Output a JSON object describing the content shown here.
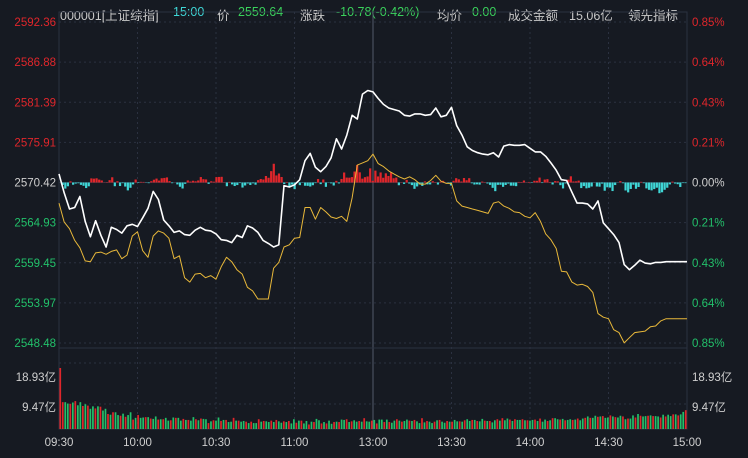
{
  "header": {
    "code": "000001[上证综指]",
    "time": "15:00",
    "price_label": "价",
    "price": "2559.64",
    "change_label": "涨跌",
    "change": "-10.78(-0.42%)",
    "avg_label": "均价",
    "avg": "0.00",
    "turnover_label": "成交金额",
    "turnover": "15.06亿",
    "leading_label": "领先指标"
  },
  "colors": {
    "background": "#161a22",
    "grid": "#2b3140",
    "price_line": "#ffffff",
    "leading_line": "#e8b83a",
    "up": "#e0262b",
    "down": "#22c06a",
    "zero_axis_text": "#cfcfcf",
    "diff_up": "#e0262b",
    "diff_down": "#3fd6d6"
  },
  "chart_data": {
    "type": "line",
    "title": "000001[上证综指]",
    "y_left_ticks": [
      "2592.36",
      "2586.88",
      "2581.39",
      "2575.91",
      "2570.42",
      "2564.93",
      "2559.45",
      "2553.97",
      "2548.48"
    ],
    "y_right_ticks": [
      "0.85%",
      "0.64%",
      "0.43%",
      "0.21%",
      "0.00%",
      "0.21%",
      "0.43%",
      "0.64%",
      "0.85%"
    ],
    "ylim": [
      2548.48,
      2592.36
    ],
    "prev_close": 2570.42,
    "volume_ticks": [
      "18.93亿",
      "9.47亿"
    ],
    "volume_max": 18.93,
    "x_ticks": [
      "09:30",
      "10:00",
      "10:30",
      "11:00",
      "13:00",
      "13:30",
      "14:00",
      "14:30",
      "15:00"
    ],
    "x_tick_minutes": [
      0,
      30,
      60,
      90,
      120,
      150,
      180,
      210,
      240
    ],
    "series": [
      {
        "kind": "price",
        "minutes": [
          0,
          2,
          4,
          6,
          8,
          10,
          12,
          14,
          16,
          18,
          20,
          22,
          24,
          26,
          28,
          30,
          32,
          34,
          36,
          38,
          40,
          42,
          44,
          46,
          48,
          50,
          52,
          54,
          56,
          58,
          60,
          62,
          64,
          66,
          68,
          70,
          72,
          74,
          76,
          78,
          80,
          82,
          84,
          86,
          88,
          90,
          92,
          94,
          96,
          98,
          100,
          102,
          104,
          106,
          108,
          110,
          112,
          114,
          116,
          118,
          120,
          122,
          124,
          126,
          128,
          130,
          132,
          134,
          136,
          138,
          140,
          142,
          144,
          146,
          148,
          150,
          152,
          154,
          156,
          158,
          160,
          162,
          164,
          166,
          168,
          170,
          172,
          174,
          176,
          178,
          180,
          182,
          184,
          186,
          188,
          190,
          192,
          194,
          196,
          198,
          200,
          202,
          204,
          206,
          208,
          210,
          212,
          214,
          216,
          218,
          220,
          222,
          224,
          226,
          228,
          230,
          232,
          234,
          236,
          238,
          240
        ],
        "values": [
          2571.6,
          2569.0,
          2566.8,
          2567.0,
          2568.5,
          2565.1,
          2563.0,
          2565.2,
          2563.2,
          2561.6,
          2564.3,
          2564.0,
          2563.5,
          2564.5,
          2564.7,
          2564.4,
          2565.6,
          2566.9,
          2569.2,
          2568.1,
          2565.3,
          2564.5,
          2563.6,
          2563.8,
          2563.3,
          2563.2,
          2563.9,
          2564.3,
          2563.9,
          2563.8,
          2563.4,
          2562.6,
          2562.5,
          2562.2,
          2563.2,
          2562.9,
          2564.5,
          2564.2,
          2563.6,
          2562.5,
          2562.1,
          2561.6,
          2561.9,
          2570.0,
          2569.8,
          2570.1,
          2570.8,
          2573.4,
          2574.4,
          2572.5,
          2571.9,
          2572.6,
          2573.8,
          2576.4,
          2575.0,
          2576.9,
          2579.6,
          2579.1,
          2582.5,
          2583.0,
          2582.8,
          2581.9,
          2581.1,
          2580.6,
          2580.4,
          2580.2,
          2579.6,
          2579.5,
          2579.8,
          2579.8,
          2579.6,
          2579.7,
          2580.6,
          2579.4,
          2579.6,
          2580.7,
          2578.2,
          2576.9,
          2575.3,
          2574.8,
          2574.5,
          2574.3,
          2574.2,
          2574.5,
          2573.9,
          2575.4,
          2575.6,
          2575.5,
          2575.5,
          2575.6,
          2575.1,
          2574.6,
          2574.6,
          2574.0,
          2573.1,
          2572.1,
          2570.8,
          2570.7,
          2569.1,
          2567.6,
          2567.6,
          2567.5,
          2566.8,
          2567.9,
          2564.9,
          2564.1,
          2563.3,
          2562.2,
          2559.2,
          2558.5,
          2559.1,
          2559.8,
          2559.4,
          2559.3,
          2559.5,
          2559.5,
          2559.6,
          2559.6,
          2559.6,
          2559.6,
          2559.6
        ]
      },
      {
        "kind": "leading",
        "minutes": [
          0,
          2,
          4,
          6,
          8,
          10,
          12,
          14,
          16,
          18,
          20,
          22,
          24,
          26,
          28,
          30,
          32,
          34,
          36,
          38,
          40,
          42,
          44,
          46,
          48,
          50,
          52,
          54,
          56,
          58,
          60,
          62,
          64,
          66,
          68,
          70,
          72,
          74,
          76,
          78,
          80,
          82,
          84,
          86,
          88,
          90,
          92,
          94,
          96,
          98,
          100,
          102,
          104,
          106,
          108,
          110,
          112,
          114,
          116,
          118,
          120,
          122,
          124,
          126,
          128,
          130,
          132,
          134,
          136,
          138,
          140,
          142,
          144,
          146,
          148,
          150,
          152,
          154,
          156,
          158,
          160,
          162,
          164,
          166,
          168,
          170,
          172,
          174,
          176,
          178,
          180,
          182,
          184,
          186,
          188,
          190,
          192,
          194,
          196,
          198,
          200,
          202,
          204,
          206,
          208,
          210,
          212,
          214,
          216,
          218,
          220,
          222,
          224,
          226,
          228,
          230,
          232,
          234,
          236,
          238,
          240
        ],
        "values": [
          2567.6,
          2565.0,
          2564.1,
          2562.5,
          2561.5,
          2559.7,
          2559.6,
          2560.8,
          2560.9,
          2560.6,
          2561.0,
          2561.2,
          2560.0,
          2560.5,
          2563.1,
          2563.7,
          2561.1,
          2560.2,
          2563.1,
          2563.8,
          2563.5,
          2562.8,
          2560.0,
          2560.4,
          2557.4,
          2556.8,
          2557.9,
          2558.0,
          2557.4,
          2557.7,
          2557.2,
          2558.9,
          2560.2,
          2559.6,
          2558.5,
          2557.9,
          2556.1,
          2555.6,
          2554.5,
          2554.5,
          2554.5,
          2558.7,
          2559.5,
          2561.6,
          2561.9,
          2562.8,
          2562.9,
          2567.0,
          2567.0,
          2565.4,
          2567.0,
          2566.4,
          2565.7,
          2565.5,
          2565.8,
          2565.1,
          2568.3,
          2572.8,
          2573.1,
          2573.4,
          2574.3,
          2573.0,
          2572.6,
          2572.0,
          2571.6,
          2571.2,
          2570.9,
          2571.2,
          2570.8,
          2570.2,
          2570.2,
          2570.7,
          2571.4,
          2570.6,
          2570.3,
          2570.3,
          2567.9,
          2567.2,
          2567.0,
          2566.8,
          2566.6,
          2566.4,
          2566.2,
          2567.6,
          2567.8,
          2567.2,
          2566.9,
          2566.4,
          2566.3,
          2565.8,
          2565.6,
          2566.3,
          2565.1,
          2563.4,
          2562.6,
          2561.4,
          2558.3,
          2558.2,
          2556.8,
          2556.4,
          2556.5,
          2556.2,
          2555.4,
          2552.5,
          2552.0,
          2551.8,
          2550.3,
          2549.9,
          2548.5,
          2549.2,
          2549.9,
          2550.0,
          2550.1,
          2550.7,
          2550.8,
          2551.5,
          2551.8,
          2551.8,
          2551.8,
          2551.8,
          2551.8
        ]
      }
    ],
    "diff_bars": [
      0.0,
      -1.37,
      -3.39,
      -2.1,
      0.66,
      -1.24,
      -0.61,
      -0.41,
      -1.32,
      -1.85,
      -3.09,
      -2.11,
      2.29,
      2.14,
      2.34,
      1.61,
      1.13,
      0.1,
      0.22,
      1.29,
      2.91,
      -2.06,
      0.72,
      -1.96,
      -0.38,
      -2.26,
      -4.38,
      -2.94,
      -1.05,
      1.65,
      -0.28,
      0.36,
      0.32,
      -0.15,
      -0.37,
      0.71,
      1.55,
      2.18,
      1.07,
      2.37,
      2.54,
      2.83,
      0.79,
      -0.39,
      0.05,
      -1.06,
      -2.36,
      -3.34,
      -0.73,
      1.16,
      0.53,
      0.97,
      0.67,
      1.13,
      3.03,
      1.85,
      1.71,
      -0.76,
      0.69,
      0.45,
      3.0,
      3.09,
      3.16,
      0.14,
      -2.06,
      0.36,
      -1.05,
      -1.96,
      -1.42,
      -0.32,
      -2.8,
      -1.65,
      -0.54,
      -1.38,
      -0.46,
      -1.23,
      1.31,
      1.95,
      1.67,
      3.61,
      2.63,
      6.31,
      10.41,
      3.92,
      5.0,
      3.05,
      -0.82,
      0.32,
      -2.23,
      -1.13,
      -3.71,
      -0.04,
      -1.46,
      -0.17,
      -1.8,
      -1.86,
      -2.22,
      -1.51,
      -0.35,
      1.92,
      -0.91,
      1.66,
      -2.41,
      -0.12,
      -0.47,
      -1.67,
      0.92,
      -0.51,
      1.96,
      5.55,
      2.73,
      2.68,
      3.02,
      6.09,
      9.74,
      5.65,
      2.14,
      2.96,
      3.36,
      7.85,
      0.95,
      6.6,
      3.37,
      5.58,
      2.63,
      5.1,
      3.62,
      5.69,
      2.35,
      2.74,
      -1.52,
      0.18,
      -0.78,
      1.47,
      -0.57,
      -1.45,
      -3.51,
      -2.19,
      -1.06,
      -1.91,
      0.62,
      -1.04,
      -1.07,
      0.74,
      0.24,
      -1.13,
      0.45,
      0.94,
      0.05,
      -0.46,
      -1.65,
      0.97,
      2.41,
      1.77,
      0.55,
      2.49,
      1.24,
      2.39,
      -0.44,
      -1.13,
      -1.02,
      -1.18,
      0.5,
      0.21,
      -0.55,
      -1.31,
      -2.96,
      -4.81,
      -1.3,
      -1.25,
      -2.41,
      -1.37,
      -0.6,
      -1.76,
      -1.79,
      -2.03,
      0.32,
      0.28,
      1.1,
      0.11,
      0.3,
      -0.23,
      0.95,
      0.94,
      2.74,
      -0.3,
      1.64,
      1.87,
      0.29,
      -1.1,
      0.79,
      0.64,
      -1.48,
      -3.3,
      -0.52,
      1.6,
      3.44,
      0.59,
      0.63,
      1.03,
      -3.1,
      -2.0,
      -3.24,
      -2.92,
      -2.22,
      -0.07,
      -2.22,
      -2.33,
      -0.61,
      -4.57,
      -2.65,
      -2.82,
      -4.75,
      -1.41,
      -0.08,
      0.77,
      -0.4,
      -4.43,
      -5.49,
      -3.6,
      -1.22,
      -3.49,
      -2.5,
      0.37,
      -0.39,
      -3.27,
      -4.07,
      -4.38,
      -3.68,
      -2.88,
      -5.94,
      -5.44,
      -4.04,
      -2.91,
      -1.06,
      0.48,
      -0.57,
      -0.94,
      -2.49,
      -0.32,
      -0.35
    ],
    "volumes": [
      17.5,
      7.7,
      7.7,
      7.3,
      7.2,
      7.6,
      8.0,
      6.8,
      7.7,
      6.6,
      7.1,
      6.7,
      5.8,
      6.5,
      5.9,
      6.5,
      6.4,
      5.3,
      5.8,
      4.3,
      4.1,
      4.8,
      4.8,
      4.0,
      3.8,
      4.4,
      3.5,
      4.0,
      4.8,
      2.7,
      3.2,
      4.0,
      3.2,
      3.3,
      3.4,
      3.4,
      3.0,
      2.9,
      3.6,
      2.7,
      2.8,
      2.8,
      3.2,
      2.4,
      2.5,
      3.3,
      3.2,
      3.2,
      2.4,
      2.9,
      2.6,
      2.6,
      2.4,
      3.4,
      2.8,
      2.5,
      3.0,
      2.9,
      2.8,
      1.7,
      2.2,
      2.5,
      2.4,
      3.3,
      2.3,
      2.6,
      2.6,
      2.0,
      2.1,
      3.2,
      2.4,
      2.4,
      2.1,
      2.3,
      2.1,
      1.7,
      2.1,
      1.7,
      1.7,
      2.8,
      2.1,
      2.3,
      2.2,
      2.0,
      2.4,
      2.0,
      2.6,
      2.2,
      1.8,
      2.2,
      2.0,
      2.3,
      1.6,
      2.8,
      1.8,
      2.4,
      2.4,
      1.6,
      2.3,
      1.3,
      2.1,
      2.0,
      2.9,
      2.5,
      1.6,
      2.0,
      1.6,
      2.4,
      1.5,
      2.0,
      2.1,
      2.0,
      2.7,
      2.6,
      2.8,
      2.0,
      2.2,
      2.5,
      2.1,
      2.3,
      2.1,
      3.1,
      2.2,
      2.1,
      2.4,
      2.6,
      1.6,
      2.7,
      2.7,
      2.0,
      2.7,
      2.0,
      1.8,
      2.4,
      2.8,
      2.4,
      2.1,
      2.3,
      2.7,
      2.4,
      2.3,
      2.6,
      2.2,
      1.7,
      3.1,
      1.9,
      2.3,
      2.1,
      1.7,
      2.1,
      2.5,
      2.6,
      2.1,
      1.8,
      2.3,
      2.1,
      2.1,
      2.6,
      2.2,
      2.2,
      2.1,
      2.5,
      2.8,
      2.3,
      2.6,
      2.6,
      2.3,
      2.2,
      2.9,
      2.4,
      2.3,
      2.3,
      1.9,
      2.5,
      2.8,
      2.4,
      3.1,
      2.5,
      3.0,
      2.7,
      2.3,
      2.8,
      2.6,
      2.6,
      2.8,
      2.5,
      2.5,
      2.4,
      2.6,
      2.7,
      2.3,
      3.0,
      2.1,
      2.7,
      2.3,
      2.5,
      3.1,
      3.1,
      2.8,
      2.7,
      2.9,
      2.5,
      2.6,
      2.8,
      2.6,
      2.7,
      3.0,
      2.5,
      3.0,
      3.2,
      3.6,
      3.2,
      3.2,
      3.8,
      3.5,
      3.6,
      3.7,
      3.2,
      3.3,
      3.9,
      3.6,
      3.4,
      3.3,
      3.8,
      3.6,
      2.8,
      3.0,
      3.0,
      3.9,
      3.3,
      4.3,
      3.8,
      3.6,
      3.7,
      3.8,
      3.9,
      3.7,
      3.7,
      3.6,
      3.3,
      4.1,
      3.6,
      4.1,
      3.7,
      4.2,
      4.2,
      3.9,
      4.2,
      4.9,
      5.4
    ]
  }
}
